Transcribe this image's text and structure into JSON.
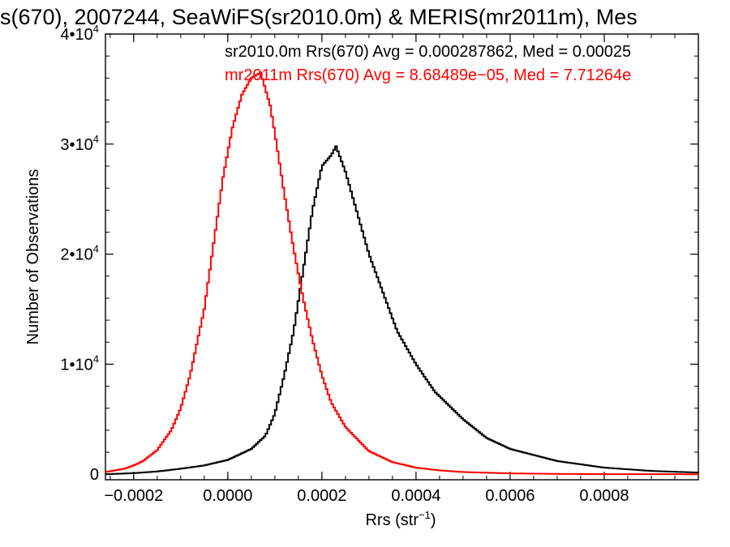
{
  "chart_data": {
    "type": "line",
    "title": "s(670), 2007244, SeaWiFS(sr2010.0m) & MERIS(mr2011m), Mes",
    "xlabel": "Rrs (str",
    "xlabel_sup": "−1",
    "xlabel_close": ")",
    "ylabel": "Number of Observations",
    "xlim": [
      -0.00026,
      0.001
    ],
    "ylim": [
      -500,
      40000
    ],
    "x_ticks": [
      {
        "value": -0.0002,
        "label": "−0.0002"
      },
      {
        "value": 0.0,
        "label": "0.0000"
      },
      {
        "value": 0.0002,
        "label": "0.0002"
      },
      {
        "value": 0.0004,
        "label": "0.0004"
      },
      {
        "value": 0.0006,
        "label": "0.0006"
      },
      {
        "value": 0.0008,
        "label": "0.0008"
      }
    ],
    "y_ticks": [
      {
        "value": 0,
        "label": "0",
        "exp": ""
      },
      {
        "value": 10000,
        "label": "1•10",
        "exp": "4"
      },
      {
        "value": 20000,
        "label": "2•10",
        "exp": "4"
      },
      {
        "value": 30000,
        "label": "3•10",
        "exp": "4"
      },
      {
        "value": 40000,
        "label": "4•10",
        "exp": "4"
      }
    ],
    "legend_position": "top-right",
    "grid": false,
    "series": [
      {
        "name": "sr2010.0m",
        "color": "#000000",
        "annotation": "sr2010.0m Rrs(670) Avg = 0.000287862, Med = 0.00025",
        "x": [
          -0.00026,
          -0.0002,
          -0.00015,
          -0.0001,
          -5e-05,
          0.0,
          5e-05,
          8e-05,
          0.0001,
          0.00012,
          0.00014,
          0.00016,
          0.00018,
          0.0002,
          0.00022,
          0.00023,
          0.00025,
          0.00028,
          0.0003,
          0.00033,
          0.00036,
          0.0004,
          0.00044,
          0.0005,
          0.00055,
          0.0006,
          0.0007,
          0.0008,
          0.0009,
          0.001
        ],
        "y": [
          0,
          100,
          250,
          500,
          800,
          1300,
          2300,
          3500,
          5500,
          9000,
          13000,
          18500,
          24000,
          28000,
          29000,
          29800,
          27500,
          23000,
          20000,
          16500,
          13000,
          10000,
          7500,
          5000,
          3300,
          2300,
          1200,
          600,
          300,
          150
        ]
      },
      {
        "name": "mr2011m",
        "color": "#ff0000",
        "annotation": "mr2011m Rrs(670) Avg = 8.68489e−05, Med = 7.71264e",
        "x": [
          -0.00026,
          -0.00022,
          -0.0002,
          -0.00018,
          -0.00015,
          -0.00012,
          -0.0001,
          -8e-05,
          -5e-05,
          -3e-05,
          -1e-05,
          1e-05,
          3e-05,
          5e-05,
          7e-05,
          9e-05,
          0.0001,
          0.00012,
          0.00014,
          0.00016,
          0.00018,
          0.0002,
          0.00022,
          0.00025,
          0.0003,
          0.00035,
          0.0004,
          0.00045,
          0.0005,
          0.0006,
          0.0007,
          0.0008,
          0.001
        ],
        "y": [
          200,
          500,
          800,
          1200,
          2200,
          4000,
          6000,
          9000,
          15000,
          21000,
          27000,
          31500,
          34500,
          36000,
          36500,
          33500,
          31000,
          25500,
          20500,
          16000,
          12200,
          9000,
          6500,
          4300,
          2100,
          1100,
          600,
          350,
          200,
          80,
          30,
          10,
          0
        ]
      }
    ]
  }
}
